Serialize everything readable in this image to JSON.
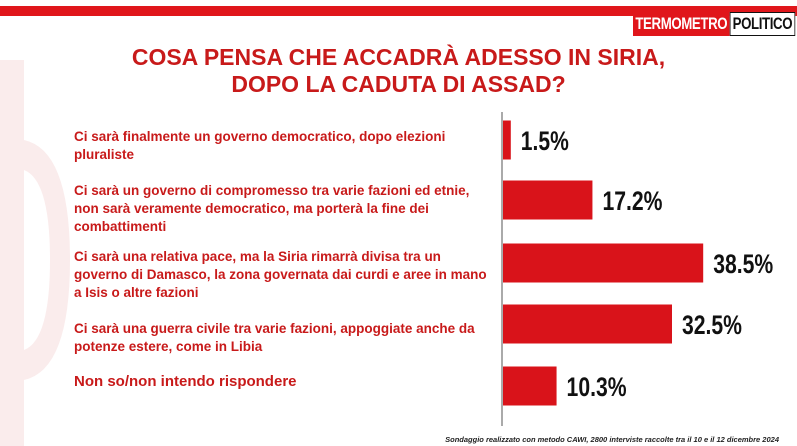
{
  "header": {
    "logo_part1": "TERMOMETRO",
    "logo_part2": "POLITICO",
    "title_line1": "COSA PENSA CHE ACCADRÀ ADESSO IN SIRIA,",
    "title_line2": "DOPO LA CADUTA DI ASSAD?"
  },
  "colors": {
    "accent": "#e0161b",
    "title": "#c81a1a",
    "bar": "#d9131a"
  },
  "chart_data": {
    "type": "bar",
    "orientation": "horizontal",
    "categories": [
      "Ci sarà  finalmente un governo democratico, dopo elezioni pluraliste",
      "Ci sarà  un governo di compromesso tra varie fazioni ed etnie, non sarà  veramente democratico, ma porterà  la fine dei combattimenti",
      "Ci sarà una relativa pace, ma la Siria rimarrà  divisa tra un governo di Damasco, la zona governata dai curdi e aree in mano a Isis o altre fazioni",
      "Ci sarà  una guerra civile tra varie fazioni, appoggiate anche da potenze estere, come in Libia",
      "Non so/non intendo rispondere"
    ],
    "values": [
      1.5,
      17.2,
      38.5,
      32.5,
      10.3
    ],
    "value_labels": [
      "1.5%",
      "17.2%",
      "38.5%",
      "32.5%",
      "10.3%"
    ],
    "title": "COSA PENSA CHE ACCADRÀ ADESSO IN SIRIA, DOPO LA CADUTA DI ASSAD?",
    "xlim": [
      0,
      40
    ],
    "grid": false
  },
  "footer": {
    "note": "Sondaggio realizzato con metodo CAWI, 2800 interviste raccolte tra il 10 e il 12 dicembre 2024"
  }
}
